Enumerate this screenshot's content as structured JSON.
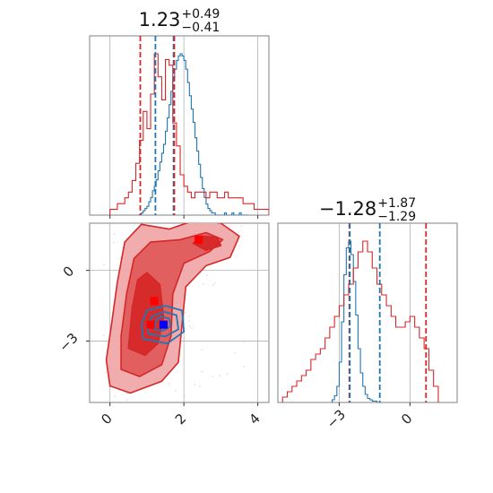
{
  "chart_data": [
    {
      "id": "hist-param1",
      "type": "histogram",
      "title": {
        "value": "1.23",
        "upper": "+0.49",
        "lower": "−0.41"
      },
      "xlim": [
        -0.55,
        4.3
      ],
      "xtick_values": [
        0,
        2,
        4
      ],
      "grid": true,
      "series": [
        {
          "color": "#1f77b4",
          "bins": {
            "start": 0.75,
            "width": 0.05,
            "counts": [
              0,
              0,
              1,
              2,
              3,
              4,
              6,
              8,
              11,
              13,
              16,
              20,
              24,
              28,
              32,
              38,
              44,
              50,
              56,
              62,
              66,
              70,
              72,
              73,
              72,
              70,
              66,
              60,
              54,
              48,
              42,
              35,
              29,
              23,
              17,
              12,
              8,
              5,
              3,
              2,
              1,
              1,
              0,
              0,
              0,
              0,
              0,
              1,
              0,
              0,
              0,
              1,
              0,
              0,
              0,
              1,
              0,
              0,
              0,
              0
            ]
          }
        },
        {
          "color": "#d62728",
          "bins": {
            "start": 0.0,
            "width": 0.1,
            "counts": [
              1,
              1,
              2,
              2,
              3,
              4,
              6,
              9,
              13,
              18,
              15,
              21,
              28,
              24,
              20,
              27,
              26,
              16,
              12,
              7,
              5,
              4,
              3,
              4,
              4,
              4,
              3,
              4,
              4,
              3,
              3,
              4,
              3,
              3,
              3,
              3,
              2,
              2,
              2,
              1,
              1,
              1,
              1,
              0,
              0
            ]
          }
        }
      ],
      "vlines": [
        {
          "x": 0.82,
          "color": "#d62728"
        },
        {
          "x": 1.23,
          "color": "#1f77b4"
        },
        {
          "x": 1.72,
          "color": "#1f77b4"
        },
        {
          "x": 1.74,
          "color": "#d62728"
        }
      ]
    },
    {
      "id": "hist-param2",
      "type": "histogram",
      "title": {
        "value": "−1.28",
        "upper": "+1.87",
        "lower": "−1.29"
      },
      "xlim": [
        -5.6,
        2.0
      ],
      "xtick_values": [
        -3,
        0
      ],
      "grid": true,
      "series": [
        {
          "color": "#1f77b4",
          "bins": {
            "start": -3.3,
            "width": 0.1,
            "counts": [
              2,
              5,
              12,
              30,
              60,
              95,
              115,
              120,
              110,
              90,
              65,
              40,
              22,
              12,
              6,
              3,
              2,
              1,
              1,
              0,
              0
            ]
          }
        },
        {
          "color": "#d62728",
          "bins": {
            "start": -5.4,
            "width": 0.2,
            "counts": [
              1,
              2,
              3,
              4,
              5,
              6,
              8,
              9,
              10,
              12,
              14,
              16,
              18,
              20,
              22,
              25,
              28,
              30,
              28,
              25,
              22,
              20,
              18,
              16,
              14,
              14,
              15,
              16,
              14,
              12,
              10,
              6,
              3
            ]
          }
        }
      ],
      "vlines": [
        {
          "x": -2.57,
          "color": "#d62728"
        },
        {
          "x": -2.55,
          "color": "#1f77b4"
        },
        {
          "x": -1.28,
          "color": "#1f77b4"
        },
        {
          "x": 0.68,
          "color": "#d62728"
        }
      ]
    },
    {
      "id": "contour-2d",
      "type": "contour",
      "xlim": [
        -0.55,
        4.3
      ],
      "ylim": [
        -5.6,
        2.0
      ],
      "xtick_values": [
        0,
        2,
        4
      ],
      "ytick_values": [
        -3,
        0
      ],
      "grid": true,
      "series": [
        {
          "color": "#d62728",
          "contours": [
            {
              "level": "outer",
              "fill": "#f0a8a9",
              "points": [
                [
                  0.0,
                  -4.9
                ],
                [
                  0.55,
                  -5.2
                ],
                [
                  1.4,
                  -4.7
                ],
                [
                  1.85,
                  -3.9
                ],
                [
                  1.95,
                  -2.3
                ],
                [
                  2.05,
                  -0.7
                ],
                [
                  2.6,
                  0.2
                ],
                [
                  3.25,
                  0.55
                ],
                [
                  3.5,
                  1.45
                ],
                [
                  3.0,
                  2.0
                ],
                [
                  2.35,
                  2.15
                ],
                [
                  1.6,
                  1.75
                ],
                [
                  0.85,
                  1.95
                ],
                [
                  0.4,
                  1.2
                ],
                [
                  0.2,
                  -0.5
                ],
                [
                  0.05,
                  -2.2
                ],
                [
                  -0.1,
                  -3.8
                ]
              ]
            },
            {
              "level": "mid",
              "fill": "#e05b5c",
              "points": [
                [
                  0.3,
                  -4.2
                ],
                [
                  0.8,
                  -4.5
                ],
                [
                  1.4,
                  -4.0
                ],
                [
                  1.65,
                  -2.8
                ],
                [
                  1.7,
                  -1.0
                ],
                [
                  2.0,
                  0.3
                ],
                [
                  2.7,
                  0.8
                ],
                [
                  3.05,
                  1.3
                ],
                [
                  2.6,
                  1.6
                ],
                [
                  1.9,
                  1.3
                ],
                [
                  1.1,
                  1.2
                ],
                [
                  0.65,
                  0.5
                ],
                [
                  0.45,
                  -1.0
                ],
                [
                  0.3,
                  -2.8
                ]
              ]
            },
            {
              "level": "inner",
              "fill": "#d62728",
              "points": [
                [
                  0.5,
                  -3.3
                ],
                [
                  0.95,
                  -3.6
                ],
                [
                  1.3,
                  -3.1
                ],
                [
                  1.45,
                  -2.0
                ],
                [
                  1.35,
                  -0.6
                ],
                [
                  1.0,
                  -0.1
                ],
                [
                  0.75,
                  -0.4
                ],
                [
                  0.6,
                  -1.6
                ]
              ]
            },
            {
              "level": "peak",
              "fill": "#d62728",
              "points": [
                [
                  2.25,
                  1.15
                ],
                [
                  2.6,
                  0.85
                ],
                [
                  3.0,
                  1.05
                ],
                [
                  2.9,
                  1.4
                ],
                [
                  2.45,
                  1.45
                ]
              ]
            }
          ],
          "markers": [
            [
              2.4,
              1.3
            ],
            [
              1.2,
              -1.3
            ],
            [
              1.1,
              -2.3
            ]
          ]
        },
        {
          "color": "#1f77b4",
          "contours": [
            {
              "level": "outer",
              "points": [
                [
                  0.9,
                  -2.9
                ],
                [
                  1.55,
                  -3.1
                ],
                [
                  2.0,
                  -2.6
                ],
                [
                  1.95,
                  -1.7
                ],
                [
                  1.5,
                  -1.5
                ],
                [
                  1.0,
                  -1.7
                ],
                [
                  0.85,
                  -2.3
                ]
              ]
            },
            {
              "level": "mid",
              "points": [
                [
                  1.05,
                  -2.7
                ],
                [
                  1.5,
                  -2.8
                ],
                [
                  1.85,
                  -2.5
                ],
                [
                  1.8,
                  -1.9
                ],
                [
                  1.45,
                  -1.75
                ],
                [
                  1.15,
                  -1.95
                ],
                [
                  1.0,
                  -2.3
                ]
              ]
            },
            {
              "level": "inner",
              "points": [
                [
                  1.2,
                  -2.5
                ],
                [
                  1.45,
                  -2.55
                ],
                [
                  1.65,
                  -2.35
                ],
                [
                  1.6,
                  -2.05
                ],
                [
                  1.4,
                  -1.95
                ],
                [
                  1.25,
                  -2.1
                ]
              ]
            }
          ],
          "markers": [
            [
              1.45,
              -2.3
            ]
          ]
        }
      ]
    }
  ]
}
